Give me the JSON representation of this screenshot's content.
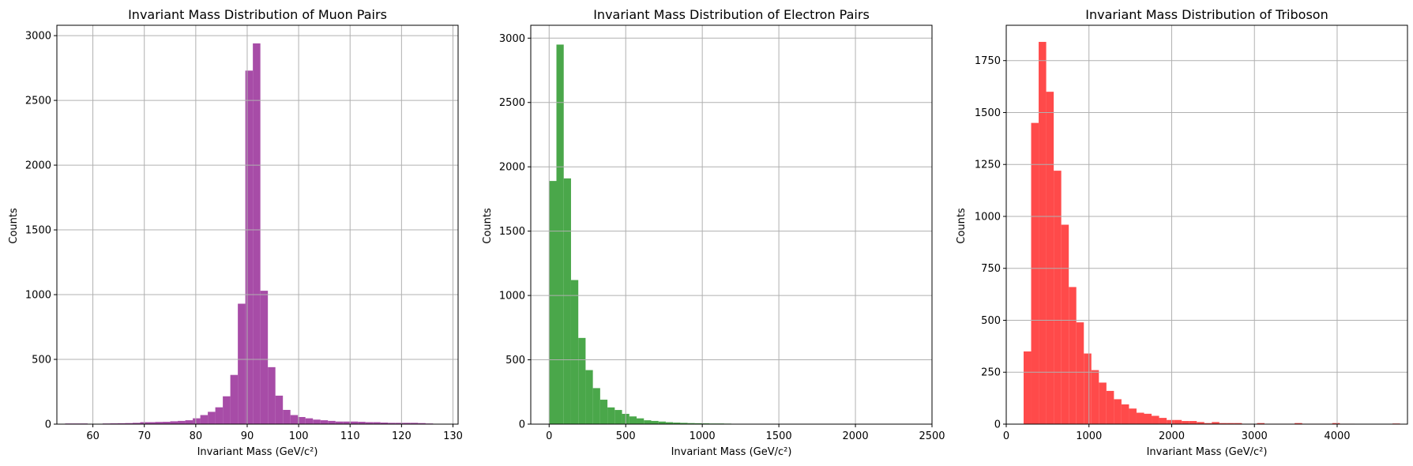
{
  "chart_data": [
    {
      "type": "bar",
      "title": "Invariant Mass Distribution of Muon Pairs",
      "xlabel": "Invariant Mass (GeV/c²)",
      "ylabel": "Counts",
      "xlim": [
        53,
        131
      ],
      "ylim": [
        0,
        3080
      ],
      "xticks": [
        60,
        70,
        80,
        90,
        100,
        110,
        120,
        130
      ],
      "yticks": [
        0,
        500,
        1000,
        1500,
        2000,
        2500,
        3000
      ],
      "grid": true,
      "color": "#a74ca7",
      "bin_edges": [
        54.6,
        56.06,
        57.52,
        58.98,
        60.44,
        61.9,
        63.36,
        64.82,
        66.28,
        67.74,
        69.2,
        70.66,
        72.12,
        73.58,
        75.04,
        76.5,
        77.96,
        79.42,
        80.88,
        82.34,
        83.8,
        85.26,
        86.72,
        88.18,
        89.64,
        91.1,
        92.56,
        94.02,
        95.48,
        96.94,
        98.4,
        99.86,
        101.32,
        102.78,
        104.24,
        105.7,
        107.16,
        108.62,
        110.08,
        111.54,
        113.0,
        114.46,
        115.92,
        117.38,
        118.84,
        120.3,
        121.76,
        123.22,
        124.68,
        126.14,
        127.6
      ],
      "counts": [
        5,
        5,
        5,
        3,
        3,
        5,
        6,
        7,
        8,
        10,
        15,
        15,
        17,
        18,
        22,
        25,
        30,
        45,
        70,
        95,
        130,
        215,
        380,
        930,
        2730,
        2940,
        1030,
        440,
        220,
        110,
        70,
        55,
        45,
        35,
        30,
        25,
        20,
        20,
        20,
        18,
        15,
        15,
        12,
        10,
        10,
        10,
        10,
        8,
        5,
        3
      ]
    },
    {
      "type": "bar",
      "title": "Invariant Mass Distribution of Electron Pairs",
      "xlabel": "Invariant Mass (GeV/c²)",
      "ylabel": "Counts",
      "xlim": [
        -120,
        2500
      ],
      "ylim": [
        0,
        3100
      ],
      "xticks": [
        0,
        500,
        1000,
        1500,
        2000,
        2500
      ],
      "yticks": [
        0,
        500,
        1000,
        1500,
        2000,
        2500,
        3000
      ],
      "grid": true,
      "color": "#4aa74a",
      "bin_edges": [
        0,
        47.6,
        95.2,
        142.8,
        190.4,
        238,
        285.6,
        333.2,
        380.8,
        428.4,
        476,
        523.6,
        571.2,
        618.8,
        666.4,
        714,
        761.6,
        809.2,
        856.8,
        904.4,
        952,
        999.6,
        1047.2,
        1094.8,
        1142.4,
        1190,
        1237.6,
        1285.2,
        1332.8,
        1380.4,
        1428,
        1475.6,
        1523.2,
        1570.8,
        1618.4,
        1666,
        1713.6,
        1761.2,
        1808.8,
        1856.4,
        1904,
        1951.6,
        1999.2,
        2046.8,
        2094.4,
        2142,
        2189.6,
        2237.2,
        2284.8,
        2332.4,
        2380
      ],
      "counts": [
        1890,
        2950,
        1910,
        1120,
        670,
        420,
        280,
        190,
        130,
        110,
        80,
        60,
        45,
        30,
        25,
        20,
        15,
        12,
        10,
        8,
        7,
        6,
        5,
        5,
        4,
        3,
        3,
        2,
        2,
        2,
        1,
        1,
        1,
        1,
        1,
        0,
        0,
        0,
        0,
        0,
        0,
        0,
        0,
        0,
        0,
        0,
        0,
        0,
        0,
        1
      ]
    },
    {
      "type": "bar",
      "title": "Invariant Mass Distribution of Triboson",
      "xlabel": "Invariant Mass (GeV/c²)",
      "ylabel": "Counts",
      "xlim": [
        0,
        4850
      ],
      "ylim": [
        0,
        1920
      ],
      "xticks": [
        0,
        1000,
        2000,
        3000,
        4000
      ],
      "yticks": [
        0,
        250,
        500,
        750,
        1000,
        1250,
        1500,
        1750
      ],
      "grid": true,
      "color": "#ff4a4a",
      "bin_edges": [
        210,
        301,
        392,
        483,
        574,
        665,
        756,
        847,
        938,
        1029,
        1120,
        1211,
        1302,
        1393,
        1484,
        1575,
        1666,
        1757,
        1848,
        1939,
        2030,
        2121,
        2212,
        2303,
        2394,
        2485,
        2576,
        2667,
        2758,
        2849,
        2940,
        3031,
        3122,
        3213,
        3304,
        3395,
        3486,
        3577,
        3668,
        3759,
        3850,
        3941,
        4032,
        4123,
        4214,
        4305,
        4396,
        4487,
        4578,
        4669,
        4760
      ],
      "counts": [
        350,
        1450,
        1840,
        1600,
        1220,
        960,
        660,
        490,
        340,
        260,
        200,
        160,
        120,
        95,
        75,
        55,
        50,
        40,
        30,
        20,
        20,
        15,
        15,
        10,
        5,
        10,
        5,
        5,
        5,
        2,
        2,
        5,
        2,
        2,
        2,
        2,
        5,
        2,
        2,
        2,
        2,
        5,
        2,
        2,
        1,
        1,
        1,
        1,
        1,
        3
      ]
    }
  ]
}
